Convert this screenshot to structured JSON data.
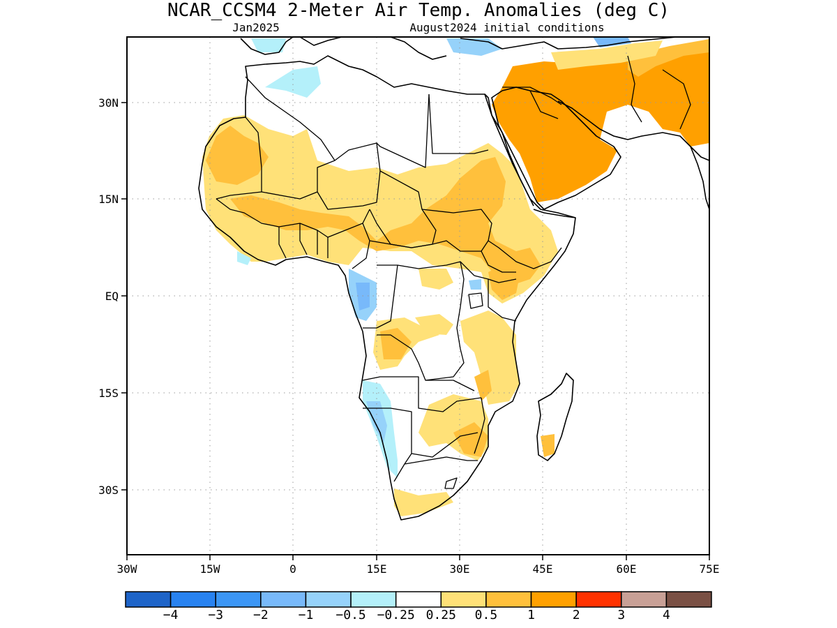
{
  "title": "NCAR_CCSM4 2-Meter Air Temp. Anomalies (deg C)",
  "subtitle_left": "Jan2025",
  "subtitle_right": "August2024 initial conditions",
  "x_ticks": [
    "30W",
    "15W",
    "0",
    "15E",
    "30E",
    "45E",
    "60E",
    "75E"
  ],
  "y_ticks": [
    "30N",
    "15N",
    "EQ",
    "15S",
    "30S"
  ],
  "colorbar": {
    "colors": [
      "#1e64c8",
      "#2882f0",
      "#3c96f5",
      "#78b9fa",
      "#96d2fa",
      "#b4f0fa",
      "#ffffff",
      "#ffe178",
      "#ffc03c",
      "#ffa000",
      "#ff3200",
      "#c8a096",
      "#7a5044"
    ],
    "labels": [
      "−4",
      "−3",
      "−2",
      "−1",
      "−0.5",
      "−0.25",
      "0.25",
      "0.5",
      "1",
      "2",
      "3",
      "4"
    ]
  },
  "anomaly_colors": {
    "warm_light": "#ffe178",
    "warm_mid": "#ffc03c",
    "warm_strong": "#ffa000",
    "cool_light": "#b4f0fa",
    "cool_mid": "#96d2fa",
    "cool_strong": "#78b9fa"
  }
}
